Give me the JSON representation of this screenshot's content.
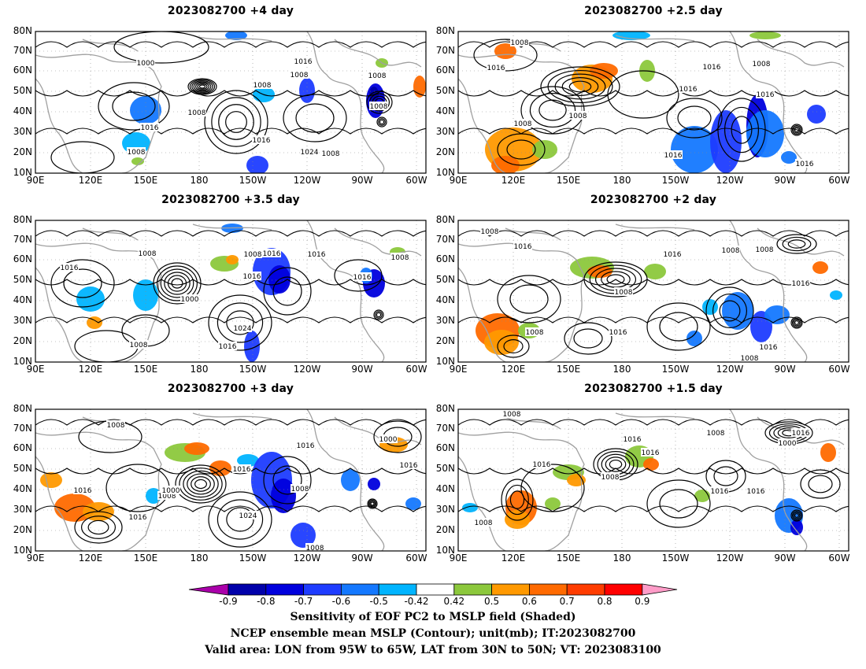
{
  "panels": [
    {
      "title": "2023082700  +4 day",
      "pressure_labels": [
        "1000",
        "1016",
        "1016",
        "1008",
        "1008",
        "1008",
        "1016",
        "1008",
        "1024",
        "1008",
        "1008",
        "1008"
      ]
    },
    {
      "title": "2023082700  +2.5 day",
      "pressure_labels": [
        "1008",
        "1008",
        "1016",
        "1016",
        "1016",
        "1008",
        "1008",
        "1016",
        "1016",
        "1016"
      ]
    },
    {
      "title": "2023082700  +3.5 day",
      "pressure_labels": [
        "1008",
        "1016",
        "1008",
        "1016",
        "1000",
        "1016",
        "1008",
        "1016",
        "1024",
        "1016",
        "1008",
        "1016"
      ]
    },
    {
      "title": "2023082700  +2 day",
      "pressure_labels": [
        "1008",
        "1016",
        "1016",
        "1008",
        "1016",
        "1008",
        "1016",
        "1008",
        "1008",
        "1016",
        "1008"
      ]
    },
    {
      "title": "2023082700  +3 day",
      "pressure_labels": [
        "1008",
        "1016",
        "1016",
        "1008",
        "1000",
        "1016",
        "1024",
        "1008",
        "1016",
        "1000",
        "1016",
        "1008"
      ]
    },
    {
      "title": "2023082700  +1.5 day",
      "pressure_labels": [
        "1008",
        "1016",
        "1016",
        "1008",
        "1000",
        "1016",
        "1008",
        "1016",
        "1016",
        "1016",
        "1008"
      ]
    }
  ],
  "lat_labels": [
    "80N",
    "70N",
    "60N",
    "50N",
    "40N",
    "30N",
    "20N",
    "10N"
  ],
  "lon_labels": [
    "90E",
    "120E",
    "150E",
    "180",
    "150W",
    "120W",
    "90W",
    "60W"
  ],
  "colorbar": {
    "labels": [
      "-0.9",
      "-0.8",
      "-0.7",
      "-0.6",
      "-0.5",
      "-0.42",
      "0.42",
      "0.5",
      "0.6",
      "0.7",
      "0.8",
      "0.9"
    ],
    "colors": [
      "#0000aa",
      "#0000dd",
      "#1e3cff",
      "#1478ff",
      "#00b4ff",
      "#ffffff",
      "#8cc83c",
      "#ff9900",
      "#ff6a00",
      "#ff3c00",
      "#ff0000"
    ],
    "end_low": "#aa00aa",
    "end_high": "#ff9cc8"
  },
  "caption": {
    "line1": "Sensitivity of EOF PC2 to MSLP field (Shaded)",
    "line2": "NCEP ensemble mean MSLP (Contour); unit(mb); IT:2023082700",
    "line3": "Valid area: LON from 95W to 65W, LAT from 30N to 50N; VT: 2023083100"
  }
}
